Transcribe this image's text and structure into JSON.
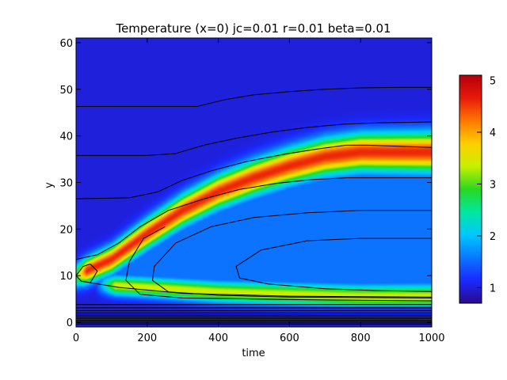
{
  "chart_data": {
    "type": "heatmap",
    "title": "Temperature (x=0) jc=0.01 r=0.01 beta=0.01",
    "xlabel": "time",
    "ylabel": "y",
    "xlim": [
      0,
      1000
    ],
    "ylim": [
      -1,
      61
    ],
    "x_ticks": [
      0,
      200,
      400,
      600,
      800,
      1000
    ],
    "y_ticks": [
      0,
      10,
      20,
      30,
      40,
      50,
      60
    ],
    "colorbar": {
      "range": [
        0.7,
        5.1
      ],
      "ticks": [
        1,
        2,
        3,
        4,
        5
      ]
    },
    "colormap": [
      "#2a0a8c",
      "#1a2aff",
      "#0a78ff",
      "#00c8ff",
      "#00e8a0",
      "#2ad820",
      "#c8f000",
      "#ffd000",
      "#ff7800",
      "#e81a0a",
      "#b4000a"
    ],
    "background_level": 1.0,
    "features": [
      {
        "name": "upper-band",
        "peak": 4.6,
        "centerline": [
          [
            0,
            10
          ],
          [
            100,
            13.5
          ],
          [
            200,
            19
          ],
          [
            300,
            24
          ],
          [
            400,
            28
          ],
          [
            500,
            31
          ],
          [
            600,
            33.5
          ],
          [
            700,
            35.5
          ],
          [
            800,
            36.5
          ],
          [
            900,
            36.5
          ],
          [
            1000,
            36.5
          ]
        ],
        "half_width": [
          [
            0,
            2.5
          ],
          [
            200,
            3
          ],
          [
            500,
            3.5
          ],
          [
            1000,
            4
          ]
        ]
      },
      {
        "name": "lower-band",
        "peak": 3.4,
        "centerline": [
          [
            80,
            8
          ],
          [
            200,
            7.5
          ],
          [
            400,
            6.5
          ],
          [
            600,
            6
          ],
          [
            800,
            5.5
          ],
          [
            1000,
            5.5
          ]
        ],
        "half_width": [
          [
            80,
            2
          ],
          [
            1000,
            2.5
          ]
        ]
      }
    ],
    "contours": [
      [
        [
          0,
          46.3
        ],
        [
          200,
          46.3
        ],
        [
          340,
          46.3
        ],
        [
          420,
          47.8
        ],
        [
          500,
          48.8
        ],
        [
          600,
          49.5
        ],
        [
          700,
          50
        ],
        [
          800,
          50.3
        ],
        [
          900,
          50.4
        ],
        [
          1000,
          50.4
        ]
      ],
      [
        [
          0,
          35.8
        ],
        [
          200,
          35.8
        ],
        [
          280,
          36.2
        ],
        [
          360,
          38
        ],
        [
          450,
          39.5
        ],
        [
          550,
          40.8
        ],
        [
          650,
          41.8
        ],
        [
          750,
          42.5
        ],
        [
          850,
          42.8
        ],
        [
          1000,
          43
        ]
      ],
      [
        [
          0,
          26.5
        ],
        [
          150,
          26.7
        ],
        [
          230,
          28
        ],
        [
          300,
          30.5
        ],
        [
          380,
          32.5
        ],
        [
          480,
          34.5
        ],
        [
          580,
          36
        ],
        [
          680,
          37.2
        ],
        [
          760,
          38
        ],
        [
          820,
          38
        ],
        [
          900,
          37.8
        ],
        [
          1000,
          37.5
        ]
      ],
      [
        [
          0,
          13.5
        ],
        [
          60,
          14.5
        ],
        [
          120,
          17
        ],
        [
          180,
          20.5
        ],
        [
          260,
          24
        ],
        [
          360,
          26.5
        ],
        [
          460,
          28.5
        ],
        [
          560,
          29.8
        ],
        [
          660,
          30.6
        ],
        [
          760,
          31
        ],
        [
          860,
          31
        ],
        [
          1000,
          31
        ]
      ],
      [
        [
          250,
          20.5
        ],
        [
          190,
          18
        ],
        [
          150,
          13
        ],
        [
          140,
          9
        ],
        [
          180,
          6
        ],
        [
          300,
          5.2
        ],
        [
          500,
          5
        ],
        [
          700,
          4.8
        ],
        [
          1000,
          4.6
        ]
      ],
      [
        [
          1000,
          24
        ],
        [
          800,
          24
        ],
        [
          650,
          23.5
        ],
        [
          500,
          22.5
        ],
        [
          380,
          20.5
        ],
        [
          280,
          17
        ],
        [
          220,
          12
        ],
        [
          215,
          9
        ],
        [
          260,
          6.5
        ],
        [
          400,
          5.8
        ],
        [
          600,
          5.4
        ],
        [
          800,
          5.3
        ],
        [
          1000,
          5.2
        ]
      ],
      [
        [
          1000,
          18
        ],
        [
          800,
          18
        ],
        [
          650,
          17.5
        ],
        [
          520,
          15.5
        ],
        [
          450,
          12
        ],
        [
          460,
          9.5
        ],
        [
          540,
          8.2
        ],
        [
          700,
          7.2
        ],
        [
          850,
          6.8
        ],
        [
          1000,
          6.6
        ]
      ],
      [
        [
          0,
          10
        ],
        [
          20,
          12
        ],
        [
          40,
          12.5
        ],
        [
          60,
          11
        ],
        [
          40,
          8.5
        ],
        [
          15,
          8.8
        ],
        [
          0,
          10
        ]
      ],
      [
        [
          40,
          8.5
        ],
        [
          120,
          7.5
        ],
        [
          300,
          6.2
        ],
        [
          600,
          5.6
        ],
        [
          1000,
          5.4
        ]
      ],
      [
        [
          0,
          3.8
        ],
        [
          1000,
          3.8
        ]
      ],
      [
        [
          0,
          3.1
        ],
        [
          1000,
          3.1
        ]
      ],
      [
        [
          0,
          2.5
        ],
        [
          1000,
          2.5
        ]
      ],
      [
        [
          0,
          2.0
        ],
        [
          1000,
          2.0
        ]
      ],
      [
        [
          0,
          1.55
        ],
        [
          1000,
          1.55
        ]
      ],
      [
        [
          0,
          1.15
        ],
        [
          1000,
          1.15
        ]
      ],
      [
        [
          0,
          0.8
        ],
        [
          1000,
          0.8
        ]
      ],
      [
        [
          0,
          0.45
        ],
        [
          1000,
          0.45
        ]
      ],
      [
        [
          0,
          0.15
        ],
        [
          1000,
          0.15
        ]
      ],
      [
        [
          0,
          -0.15
        ],
        [
          1000,
          -0.15
        ]
      ],
      [
        [
          0,
          -0.45
        ],
        [
          1000,
          -0.45
        ]
      ]
    ]
  }
}
